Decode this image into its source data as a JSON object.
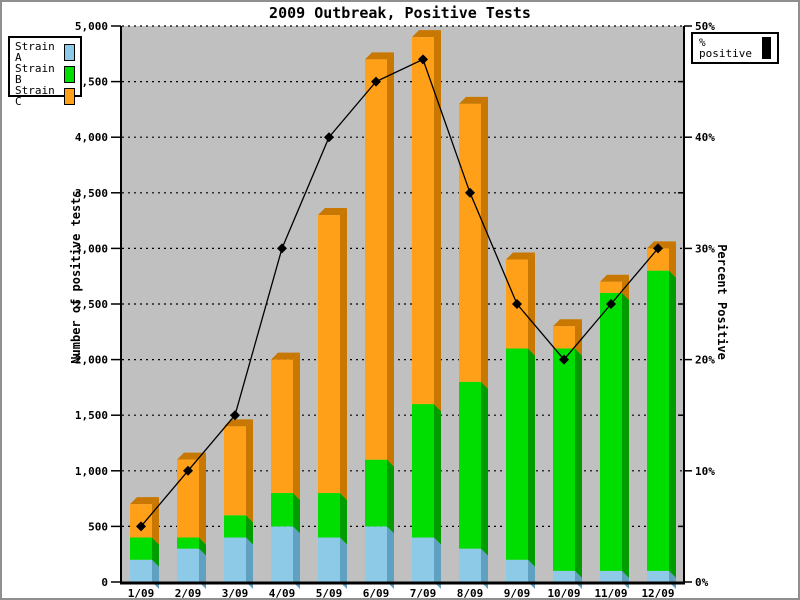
{
  "chart_data": {
    "type": "bar",
    "subtype": "stacked-3d-bars-with-line-overlay",
    "title": "2009 Outbreak, Positive Tests",
    "plot_bg": "#C0C0C0",
    "grid": "dotted",
    "categories": [
      "1/09",
      "2/09",
      "3/09",
      "4/09",
      "5/09",
      "6/09",
      "7/09",
      "8/09",
      "9/09",
      "10/09",
      "11/09",
      "12/09"
    ],
    "series": [
      {
        "name": "Strain A",
        "color": "#8CCAE8",
        "side_color": "#60A0C0",
        "values": [
          200,
          300,
          400,
          500,
          400,
          500,
          400,
          300,
          200,
          100,
          100,
          100
        ]
      },
      {
        "name": "Strain B",
        "color": "#00DD00",
        "side_color": "#009C00",
        "values": [
          200,
          100,
          200,
          300,
          400,
          600,
          1200,
          1500,
          1900,
          2000,
          2500,
          2700
        ]
      },
      {
        "name": "Strain C",
        "color": "#FFA018",
        "side_color": "#C87800",
        "values": [
          300,
          700,
          800,
          1200,
          2500,
          3600,
          3300,
          2500,
          800,
          200,
          100,
          200
        ]
      }
    ],
    "bar_totals": [
      700,
      1100,
      1400,
      2000,
      3300,
      4700,
      4900,
      4300,
      2900,
      2300,
      2700,
      3000
    ],
    "line_series": {
      "name": "% positive",
      "color": "#000000",
      "marker": "diamond",
      "axis": "right",
      "values": [
        5,
        10,
        15,
        30,
        40,
        45,
        47,
        35,
        25,
        20,
        25,
        30
      ]
    },
    "axis_left": {
      "label": "Number of positive tests",
      "min": 0,
      "max": 5000,
      "tick_step": 500,
      "tick_labels": [
        "0",
        "500",
        "1,000",
        "1,500",
        "2,000",
        "2,500",
        "3,000",
        "3,500",
        "4,000",
        "4,500",
        "5,000"
      ]
    },
    "axis_right": {
      "label": "Percent Positive",
      "min": 0,
      "max": 50,
      "minor_tick_step": 5,
      "label_step": 10,
      "tick_labels": [
        "0%",
        "10%",
        "20%",
        "30%",
        "40%",
        "50%"
      ]
    }
  }
}
